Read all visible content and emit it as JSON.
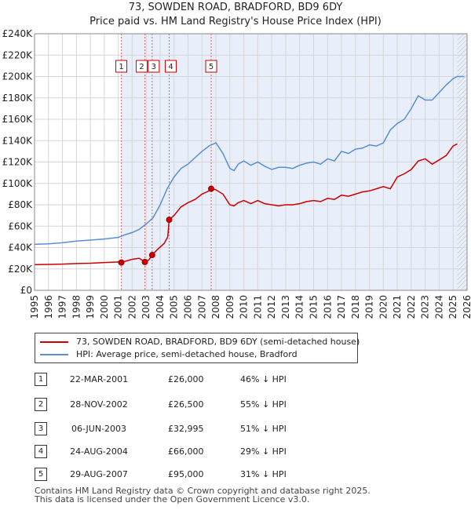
{
  "title": "73, SOWDEN ROAD, BRADFORD, BD9 6DY",
  "subtitle": "Price paid vs. HM Land Registry's House Price Index (HPI)",
  "chart_data": {
    "type": "line",
    "title": "73, SOWDEN ROAD, BRADFORD, BD9 6DY",
    "subtitle": "Price paid vs. HM Land Registry's House Price Index (HPI)",
    "xlim": [
      1995,
      2026
    ],
    "ylim": [
      0,
      240000
    ],
    "x_ticks": [
      1995,
      1996,
      1997,
      1998,
      1999,
      2000,
      2001,
      2002,
      2003,
      2004,
      2005,
      2006,
      2007,
      2008,
      2009,
      2010,
      2011,
      2012,
      2013,
      2014,
      2015,
      2016,
      2017,
      2018,
      2019,
      2020,
      2021,
      2022,
      2023,
      2024,
      2025,
      2026
    ],
    "y_ticks": [
      {
        "value": 0,
        "label": "£0"
      },
      {
        "value": 20000,
        "label": "£20K"
      },
      {
        "value": 40000,
        "label": "£40K"
      },
      {
        "value": 60000,
        "label": "£60K"
      },
      {
        "value": 80000,
        "label": "£80K"
      },
      {
        "value": 100000,
        "label": "£100K"
      },
      {
        "value": 120000,
        "label": "£120K"
      },
      {
        "value": 140000,
        "label": "£140K"
      },
      {
        "value": 160000,
        "label": "£160K"
      },
      {
        "value": 180000,
        "label": "£180K"
      },
      {
        "value": 200000,
        "label": "£200K"
      },
      {
        "value": 220000,
        "label": "£220K"
      },
      {
        "value": 240000,
        "label": "£240K"
      }
    ],
    "grid": true,
    "forecast_start": 2025.3,
    "series": [
      {
        "name": "73, SOWDEN ROAD, BRADFORD, BD9 6DY (semi-detached house)",
        "color": "#cc0000",
        "x": [
          1995,
          1996,
          1997,
          1998,
          1999,
          2000,
          2001.0,
          2001.22,
          2001.6,
          2002.0,
          2002.5,
          2002.91,
          2003.2,
          2003.43,
          2003.8,
          2004.3,
          2004.55,
          2004.65,
          2005.0,
          2005.5,
          2006.0,
          2006.5,
          2007.0,
          2007.5,
          2007.66,
          2008.0,
          2008.5,
          2009.0,
          2009.3,
          2009.6,
          2010.0,
          2010.5,
          2011.0,
          2011.5,
          2012.0,
          2012.5,
          2013.0,
          2013.5,
          2014.0,
          2014.5,
          2015.0,
          2015.5,
          2016.0,
          2016.5,
          2017.0,
          2017.5,
          2018.0,
          2018.5,
          2019.0,
          2019.5,
          2020.0,
          2020.5,
          2021.0,
          2021.5,
          2022.0,
          2022.5,
          2023.0,
          2023.5,
          2024.0,
          2024.5,
          2025.0,
          2025.3
        ],
        "y": [
          24000,
          24200,
          24500,
          25000,
          25300,
          26000,
          26500,
          26000,
          27500,
          29000,
          30000,
          26500,
          28500,
          32995,
          38000,
          44000,
          50000,
          66000,
          70000,
          78000,
          82000,
          85000,
          90000,
          93000,
          95000,
          94000,
          90000,
          80000,
          79000,
          82000,
          84000,
          81000,
          84000,
          81000,
          80000,
          79000,
          80000,
          80000,
          81000,
          83000,
          84000,
          83000,
          86000,
          85000,
          89000,
          88000,
          90000,
          92000,
          93000,
          95000,
          97000,
          95000,
          106000,
          109000,
          113000,
          121000,
          123000,
          118000,
          122000,
          126000,
          135000,
          137000
        ]
      },
      {
        "name": "HPI: Average price, semi-detached house, Bradford",
        "color": "#5b8fd0",
        "x": [
          1995,
          1996,
          1997,
          1998,
          1999,
          2000,
          2001.0,
          2001.5,
          2002.0,
          2002.5,
          2003.0,
          2003.5,
          2004.0,
          2004.5,
          2005.0,
          2005.5,
          2006.0,
          2006.5,
          2007.0,
          2007.5,
          2008.0,
          2008.5,
          2009.0,
          2009.3,
          2009.6,
          2010.0,
          2010.5,
          2011.0,
          2011.5,
          2012.0,
          2012.5,
          2013.0,
          2013.5,
          2014.0,
          2014.5,
          2015.0,
          2015.5,
          2016.0,
          2016.5,
          2017.0,
          2017.5,
          2018.0,
          2018.5,
          2019.0,
          2019.5,
          2020.0,
          2020.5,
          2021.0,
          2021.5,
          2022.0,
          2022.5,
          2023.0,
          2023.5,
          2024.0,
          2024.5,
          2025.0,
          2025.3,
          2025.8
        ],
        "y": [
          43000,
          43500,
          44500,
          46000,
          47000,
          48000,
          49500,
          52000,
          54000,
          57000,
          62000,
          68000,
          80000,
          95000,
          106000,
          114000,
          118000,
          124000,
          130000,
          135000,
          138000,
          128000,
          114000,
          112000,
          118000,
          121000,
          117000,
          120000,
          116000,
          113000,
          115000,
          115000,
          114000,
          117000,
          119000,
          120000,
          118000,
          123000,
          121000,
          130000,
          128000,
          132000,
          133000,
          136000,
          135000,
          138000,
          150000,
          156000,
          160000,
          170000,
          182000,
          178000,
          178000,
          185000,
          192000,
          198000,
          200000,
          200000
        ]
      }
    ],
    "sales": [
      {
        "num": "1",
        "x": 2001.22,
        "y": 26000,
        "date": "22-MAR-2001",
        "price": "£26,000",
        "hpi": "46% ↓ HPI"
      },
      {
        "num": "2",
        "x": 2002.91,
        "y": 26500,
        "date": "28-NOV-2002",
        "price": "£26,500",
        "hpi": "55% ↓ HPI"
      },
      {
        "num": "3",
        "x": 2003.43,
        "y": 32995,
        "date": "06-JUN-2003",
        "price": "£32,995",
        "hpi": "51% ↓ HPI"
      },
      {
        "num": "4",
        "x": 2004.65,
        "y": 66000,
        "date": "24-AUG-2004",
        "price": "£66,000",
        "hpi": "29% ↓ HPI"
      },
      {
        "num": "5",
        "x": 2007.66,
        "y": 95000,
        "date": "29-AUG-2007",
        "price": "£95,000",
        "hpi": "31% ↓ HPI"
      }
    ]
  },
  "legend": {
    "property_label": "73, SOWDEN ROAD, BRADFORD, BD9 6DY (semi-detached house)",
    "hpi_label": "HPI: Average price, semi-detached house, Bradford"
  },
  "footer": {
    "line1": "Contains HM Land Registry data © Crown copyright and database right 2025.",
    "line2": "This data is licensed under the Open Government Licence v3.0."
  }
}
